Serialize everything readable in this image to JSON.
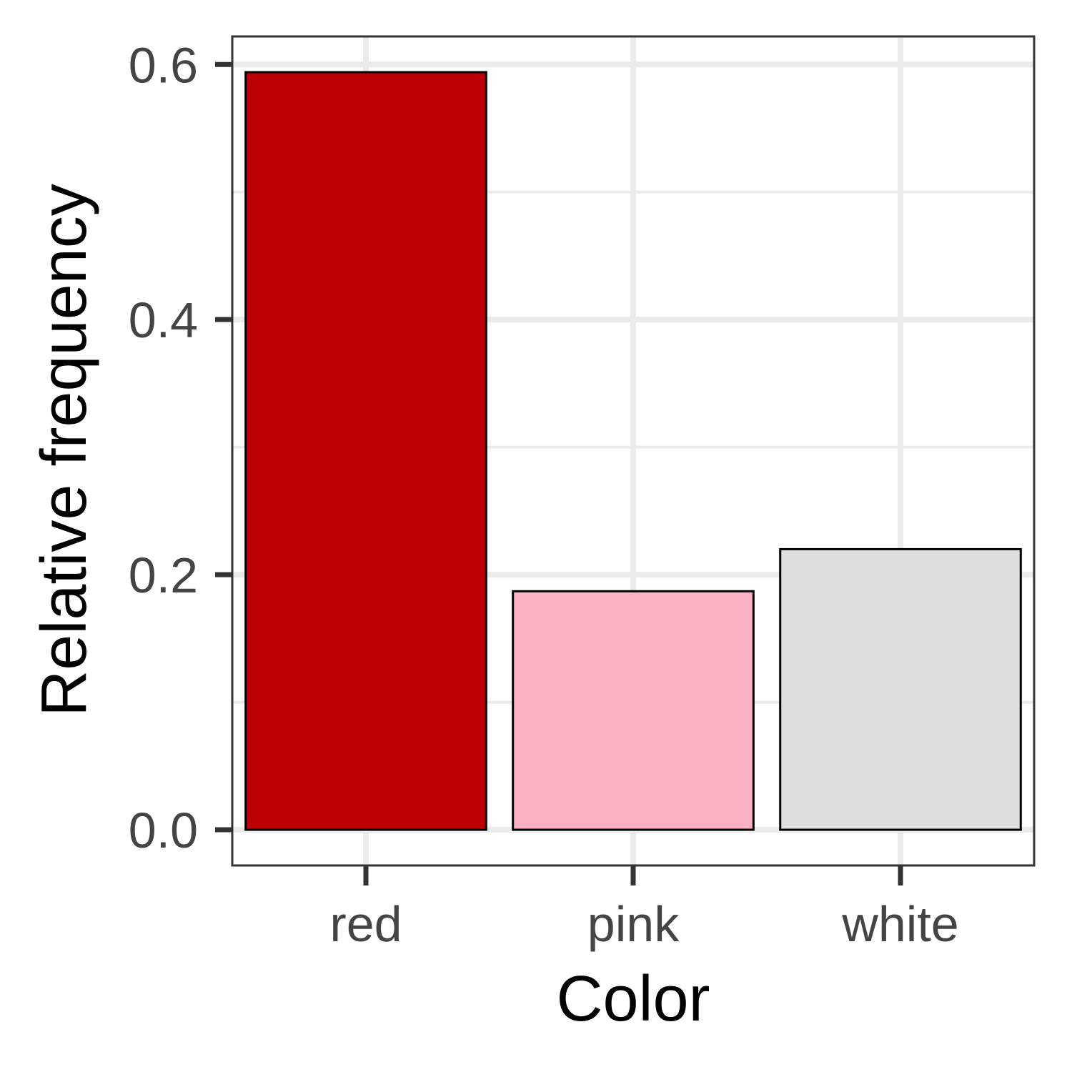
{
  "chart_data": {
    "type": "bar",
    "categories": [
      "red",
      "pink",
      "white"
    ],
    "values": [
      0.594,
      0.187,
      0.22
    ],
    "bar_colors": [
      "#BB0006",
      "#FCB1C3",
      "#DEDEDE"
    ],
    "bar_outline_color": "#000000",
    "xlabel": "Color",
    "ylabel": "Relative frequency",
    "y_ticks": [
      "0.0",
      "0.2",
      "0.4",
      "0.6"
    ],
    "ylim": [
      -0.028,
      0.622
    ],
    "grid": true,
    "legend": "none"
  }
}
